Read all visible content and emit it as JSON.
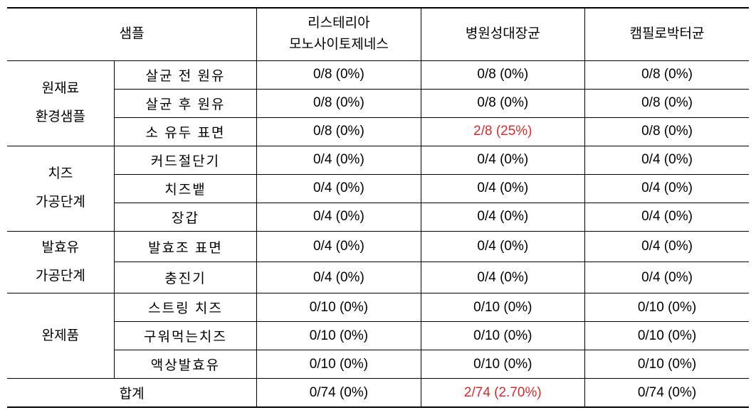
{
  "table": {
    "headers": {
      "sample": "샘플",
      "col1": "리스테리아\n모노사이토제네스",
      "col2": "병원성대장균",
      "col3": "캠필로박터균"
    },
    "groups": [
      {
        "label": "원재료\n환경샘플",
        "label_lines": [
          "원재료",
          "환경샘플"
        ],
        "rows": [
          {
            "sub": "살균 전 원유",
            "c1": "0/8 (0%)",
            "c2": "0/8 (0%)",
            "c3": "0/8 (0%)",
            "highlight": false
          },
          {
            "sub": "살균 후 원유",
            "c1": "0/8 (0%)",
            "c2": "0/8 (0%)",
            "c3": "0/8 (0%)",
            "highlight": false
          },
          {
            "sub": "소 유두 표면",
            "c1": "0/8 (0%)",
            "c2": "2/8 (25%)",
            "c3": "0/8 (0%)",
            "highlight": true
          }
        ]
      },
      {
        "label": "치즈\n가공단계",
        "label_lines": [
          "치즈",
          "가공단계"
        ],
        "rows": [
          {
            "sub": "커드절단기",
            "c1": "0/4 (0%)",
            "c2": "0/4 (0%)",
            "c3": "0/4 (0%)",
            "highlight": false
          },
          {
            "sub": "치즈뱉",
            "c1": "0/4 (0%)",
            "c2": "0/4 (0%)",
            "c3": "0/4 (0%)",
            "highlight": false
          },
          {
            "sub": "장갑",
            "c1": "0/4 (0%)",
            "c2": "0/4 (0%)",
            "c3": "0/4 (0%)",
            "highlight": false
          }
        ]
      },
      {
        "label": "발효유\n가공단계",
        "label_lines": [
          "발효유",
          "가공단계"
        ],
        "rows": [
          {
            "sub": "발효조 표면",
            "c1": "0/4 (0%)",
            "c2": "0/4 (0%)",
            "c3": "0/4 (0%)",
            "highlight": false
          },
          {
            "sub": "충진기",
            "c1": "0/4 (0%)",
            "c2": "0/4 (0%)",
            "c3": "0/4 (0%)",
            "highlight": false
          }
        ]
      },
      {
        "label": "완제품",
        "label_lines": [
          "완제품"
        ],
        "rows": [
          {
            "sub": "스트링 치즈",
            "c1": "0/10 (0%)",
            "c2": "0/10 (0%)",
            "c3": "0/10 (0%)",
            "highlight": false
          },
          {
            "sub": "구워먹는치즈",
            "c1": "0/10 (0%)",
            "c2": "0/10 (0%)",
            "c3": "0/10 (0%)",
            "highlight": false
          },
          {
            "sub": "액상발효유",
            "c1": "0/10 (0%)",
            "c2": "0/10 (0%)",
            "c3": "0/10 (0%)",
            "highlight": false
          }
        ]
      }
    ],
    "total": {
      "label": "합계",
      "c1": "0/74 (0%)",
      "c2": "2/74 (2.70%)",
      "c3": "0/74 (0%)",
      "highlight": true
    },
    "style": {
      "highlight_color": "#d92b2b",
      "text_color": "#000000",
      "border_color": "#000000",
      "background_color": "#ffffff",
      "font_size": 19
    }
  }
}
